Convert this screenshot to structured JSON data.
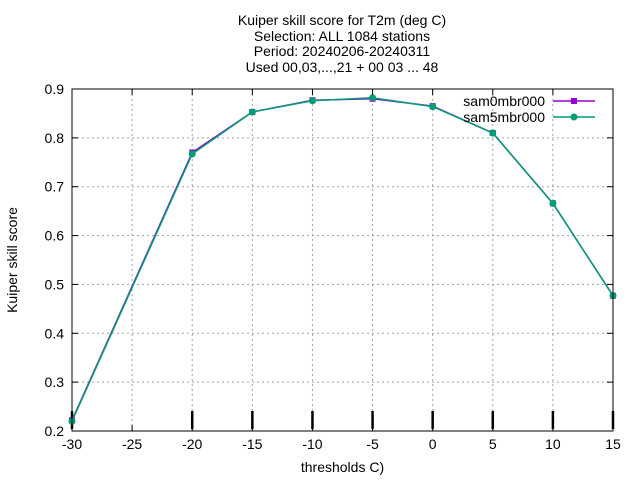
{
  "chart_data": {
    "type": "line",
    "title_lines": [
      "Kuiper skill score  for T2m (deg C)",
      "Selection: ALL   1084 stations",
      "Period: 20240206-20240311",
      "Used 00,03,...,21 + 00 03 ... 48"
    ],
    "xlabel": "thresholds C)",
    "ylabel": "Kuiper skill score",
    "xlim": [
      -30,
      15
    ],
    "ylim": [
      0.2,
      0.9
    ],
    "xticks": [
      -30,
      -25,
      -20,
      -15,
      -10,
      -5,
      0,
      5,
      10,
      15
    ],
    "yticks": [
      0.2,
      0.3,
      0.4,
      0.5,
      0.6,
      0.7,
      0.8,
      0.9
    ],
    "grid": true,
    "legend_position": "top-right",
    "x": [
      -30,
      -20,
      -15,
      -10,
      -5,
      0,
      5,
      10,
      15
    ],
    "series": [
      {
        "name": "sam0mbr000",
        "color": "#9400d3",
        "values": [
          0.222,
          0.77,
          0.853,
          0.877,
          0.88,
          0.865,
          0.81,
          0.666,
          0.477
        ]
      },
      {
        "name": "sam5mbr000",
        "color": "#009e73",
        "values": [
          0.22,
          0.767,
          0.853,
          0.876,
          0.882,
          0.864,
          0.81,
          0.666,
          0.477
        ]
      }
    ],
    "marker_x": [
      -30,
      -20,
      -15,
      -10,
      -5,
      0,
      5,
      10,
      15
    ]
  }
}
